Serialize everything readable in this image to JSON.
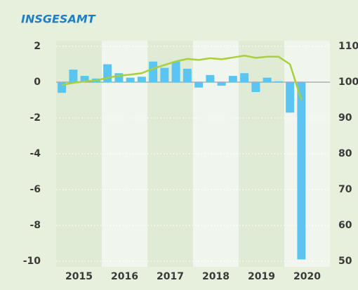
{
  "chart_data": {
    "type": "bar",
    "title": "INSGESAMT",
    "categories": [
      "2015",
      null,
      null,
      null,
      "2016",
      null,
      null,
      null,
      "2017",
      null,
      null,
      null,
      "2018",
      null,
      null,
      null,
      "2019",
      null,
      null,
      null,
      "2020",
      null
    ],
    "series": [
      {
        "type": "bar",
        "color": "#5bc5f2",
        "values": [
          -0.6,
          0.7,
          0.35,
          0.2,
          1.0,
          0.5,
          0.25,
          0.3,
          1.15,
          0.8,
          1.15,
          0.75,
          -0.3,
          0.4,
          -0.2,
          0.35,
          0.5,
          -0.55,
          0.25,
          0.05,
          -1.7,
          -9.9
        ]
      },
      {
        "type": "line",
        "color": "#a8cf3c",
        "axis": "y2",
        "values": [
          99.2,
          99.8,
          100.2,
          100.5,
          101.2,
          101.8,
          102.1,
          102.5,
          103.8,
          104.8,
          105.8,
          106.5,
          106.2,
          106.7,
          106.4,
          106.9,
          107.4,
          106.8,
          107.1,
          107.1,
          105.0,
          95.0
        ]
      }
    ],
    "ylim": [
      -10,
      2
    ],
    "yticks": [
      -10,
      -8,
      -6,
      -4,
      -2,
      0,
      2
    ],
    "y2lim": [
      50,
      110
    ],
    "y2ticks": [
      50,
      60,
      70,
      80,
      90,
      100,
      110
    ],
    "grid": true
  }
}
